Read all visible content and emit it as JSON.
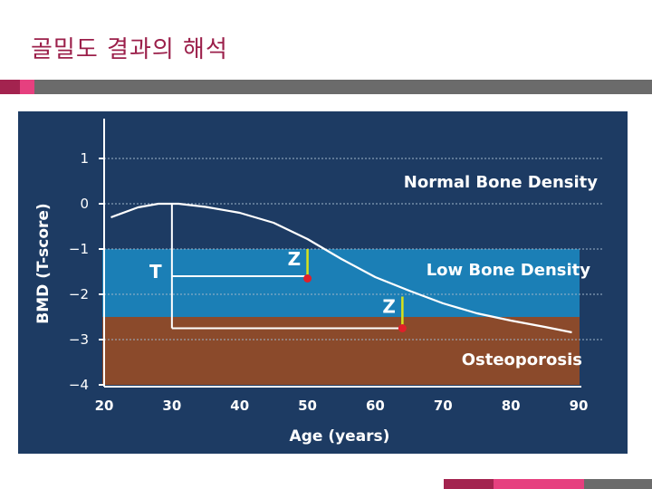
{
  "slide": {
    "title": "골밀도 결과의 해석",
    "accent_colors": {
      "magenta": "#e6407f",
      "dark_red": "#a3234f",
      "gray": "#6b6b6b"
    }
  },
  "chart_data": {
    "type": "line",
    "xlabel": "Age (years)",
    "ylabel": "BMD (T-score)",
    "xlim": [
      20,
      90
    ],
    "ylim": [
      -4,
      1
    ],
    "x_ticks": [
      20,
      30,
      40,
      50,
      60,
      70,
      80,
      90
    ],
    "y_ticks": [
      1,
      0,
      -1,
      -2,
      -3,
      -4
    ],
    "y_tick_labels": [
      "1",
      "0",
      "−1",
      "−2",
      "−3",
      "−4"
    ],
    "grid": true,
    "bands": [
      {
        "label": "Normal Bone Density",
        "from": -1,
        "to": 1.4,
        "color": "#1d3b63"
      },
      {
        "label": "Low Bone Density",
        "from": -2.5,
        "to": -1,
        "color": "#1b7fb6"
      },
      {
        "label": "Osteoporosis",
        "from": -4,
        "to": -2.5,
        "color": "#8b4a2b"
      }
    ],
    "series": [
      {
        "x": [
          21,
          25,
          28,
          31,
          35,
          40,
          45,
          50,
          55,
          60,
          65,
          70,
          75,
          80,
          85,
          89
        ],
        "y": [
          -0.3,
          -0.08,
          0.0,
          0.0,
          -0.07,
          -0.2,
          -0.42,
          -0.78,
          -1.22,
          -1.62,
          -1.92,
          -2.2,
          -2.42,
          -2.58,
          -2.72,
          -2.84
        ]
      }
    ],
    "annotations": [
      {
        "label": "T",
        "x_from": 30,
        "x_to": 50,
        "y": -1.6,
        "type": "bracket-line"
      },
      {
        "label": "Z",
        "x": 50,
        "y_from": -1.0,
        "y_to": -1.65,
        "dot_y": -1.65
      },
      {
        "label": "T-long",
        "x_from": 30,
        "x_to": 64,
        "y": -2.75,
        "type": "line"
      },
      {
        "label": "Z",
        "x": 64,
        "y_from": -2.05,
        "y_to": -2.75,
        "dot_y": -2.75
      }
    ]
  }
}
